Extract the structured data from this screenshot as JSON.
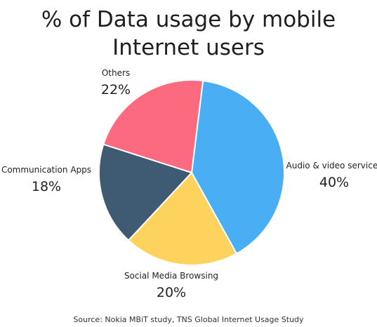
{
  "chart_data": {
    "type": "pie",
    "title_lines": [
      "% of Data usage by mobile",
      "Internet users"
    ],
    "slices": [
      {
        "label": "Audio & video services",
        "value": 40,
        "display": "40%",
        "color": "#4aaef5"
      },
      {
        "label": "Social Media Browsing",
        "value": 20,
        "display": "20%",
        "color": "#fdd35e"
      },
      {
        "label": "Communication Apps",
        "value": 18,
        "display": "18%",
        "color": "#3f5a73"
      },
      {
        "label": "Others",
        "value": 22,
        "display": "22%",
        "color": "#fb6a7f"
      }
    ]
  },
  "source": "Source: Nokia MBiT study, TNS Global Internet Usage Study"
}
